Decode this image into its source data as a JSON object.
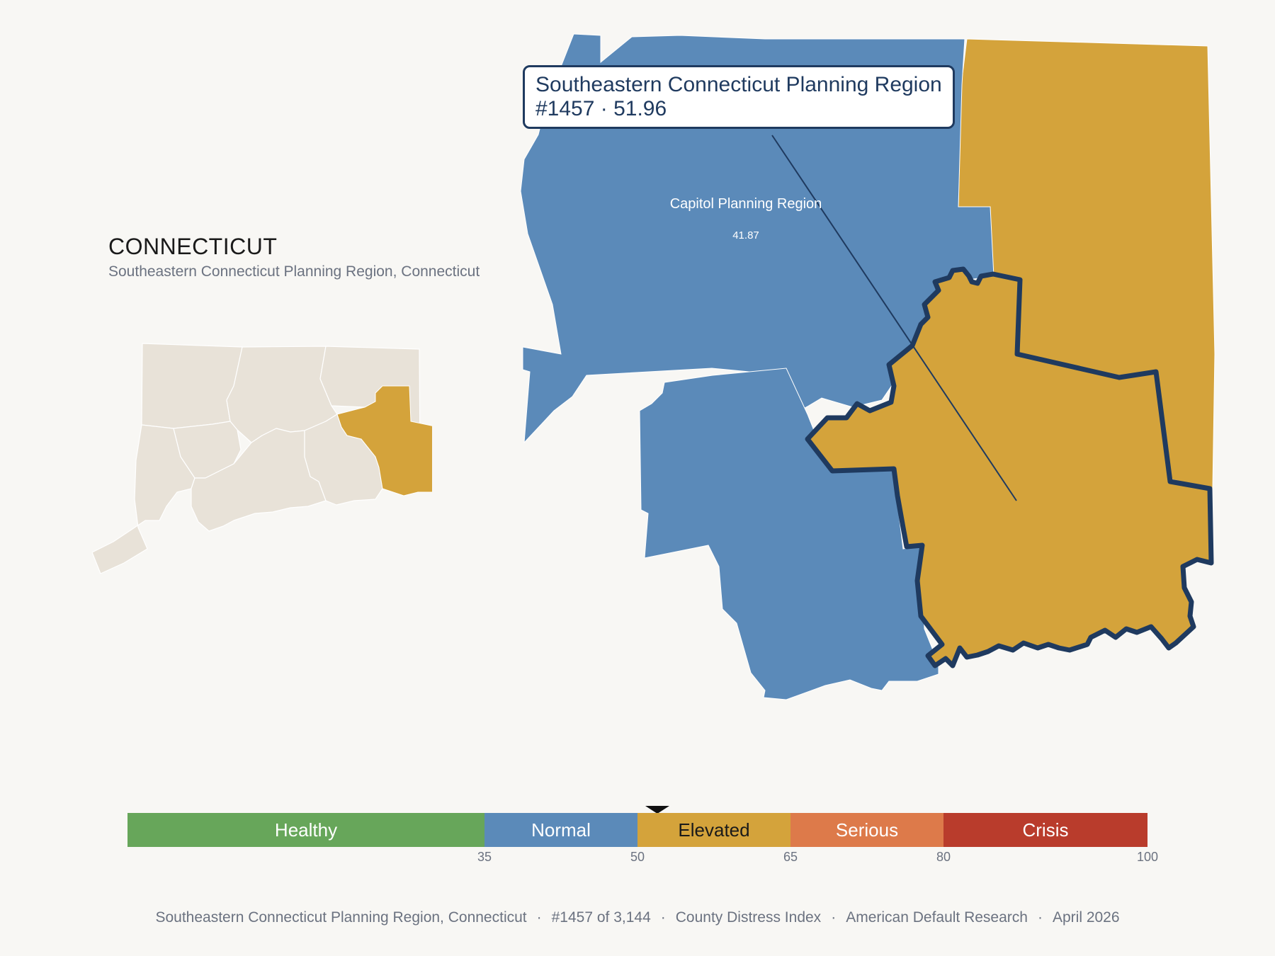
{
  "header": {
    "state": "CONNECTICUT",
    "subtitle": "Southeastern Connecticut Planning Region, Connecticut"
  },
  "tooltip": {
    "name": "Southeastern Connecticut Planning Region",
    "detail": "#1457 · 51.96"
  },
  "map_labels": [
    {
      "name": "Capitol Planning Region",
      "value": "41.87"
    }
  ],
  "scale": {
    "segments": [
      {
        "label": "Healthy",
        "color": "#67a65a",
        "text_color": "#ffffff",
        "from": 0,
        "to": 35
      },
      {
        "label": "Normal",
        "color": "#5b8ab9",
        "text_color": "#ffffff",
        "from": 35,
        "to": 50
      },
      {
        "label": "Elevated",
        "color": "#d4a33b",
        "text_color": "#1a1a1a",
        "from": 50,
        "to": 65
      },
      {
        "label": "Serious",
        "color": "#dd7a4a",
        "text_color": "#ffffff",
        "from": 65,
        "to": 80
      },
      {
        "label": "Crisis",
        "color": "#b93c2c",
        "text_color": "#ffffff",
        "from": 80,
        "to": 100
      }
    ],
    "ticks": [
      "35",
      "50",
      "65",
      "80",
      "100"
    ],
    "pointer_value": 51.96
  },
  "footer": {
    "items": [
      "Southeastern Connecticut Planning Region, Connecticut",
      "#1457 of 3,144",
      "County Distress Index",
      "American Default Research",
      "April 2026"
    ]
  },
  "colors": {
    "normal": "#5b8ab9",
    "elevated": "#d4a33b",
    "inset_base": "#e8e2d8",
    "highlight_outline": "#1f3a5f"
  }
}
